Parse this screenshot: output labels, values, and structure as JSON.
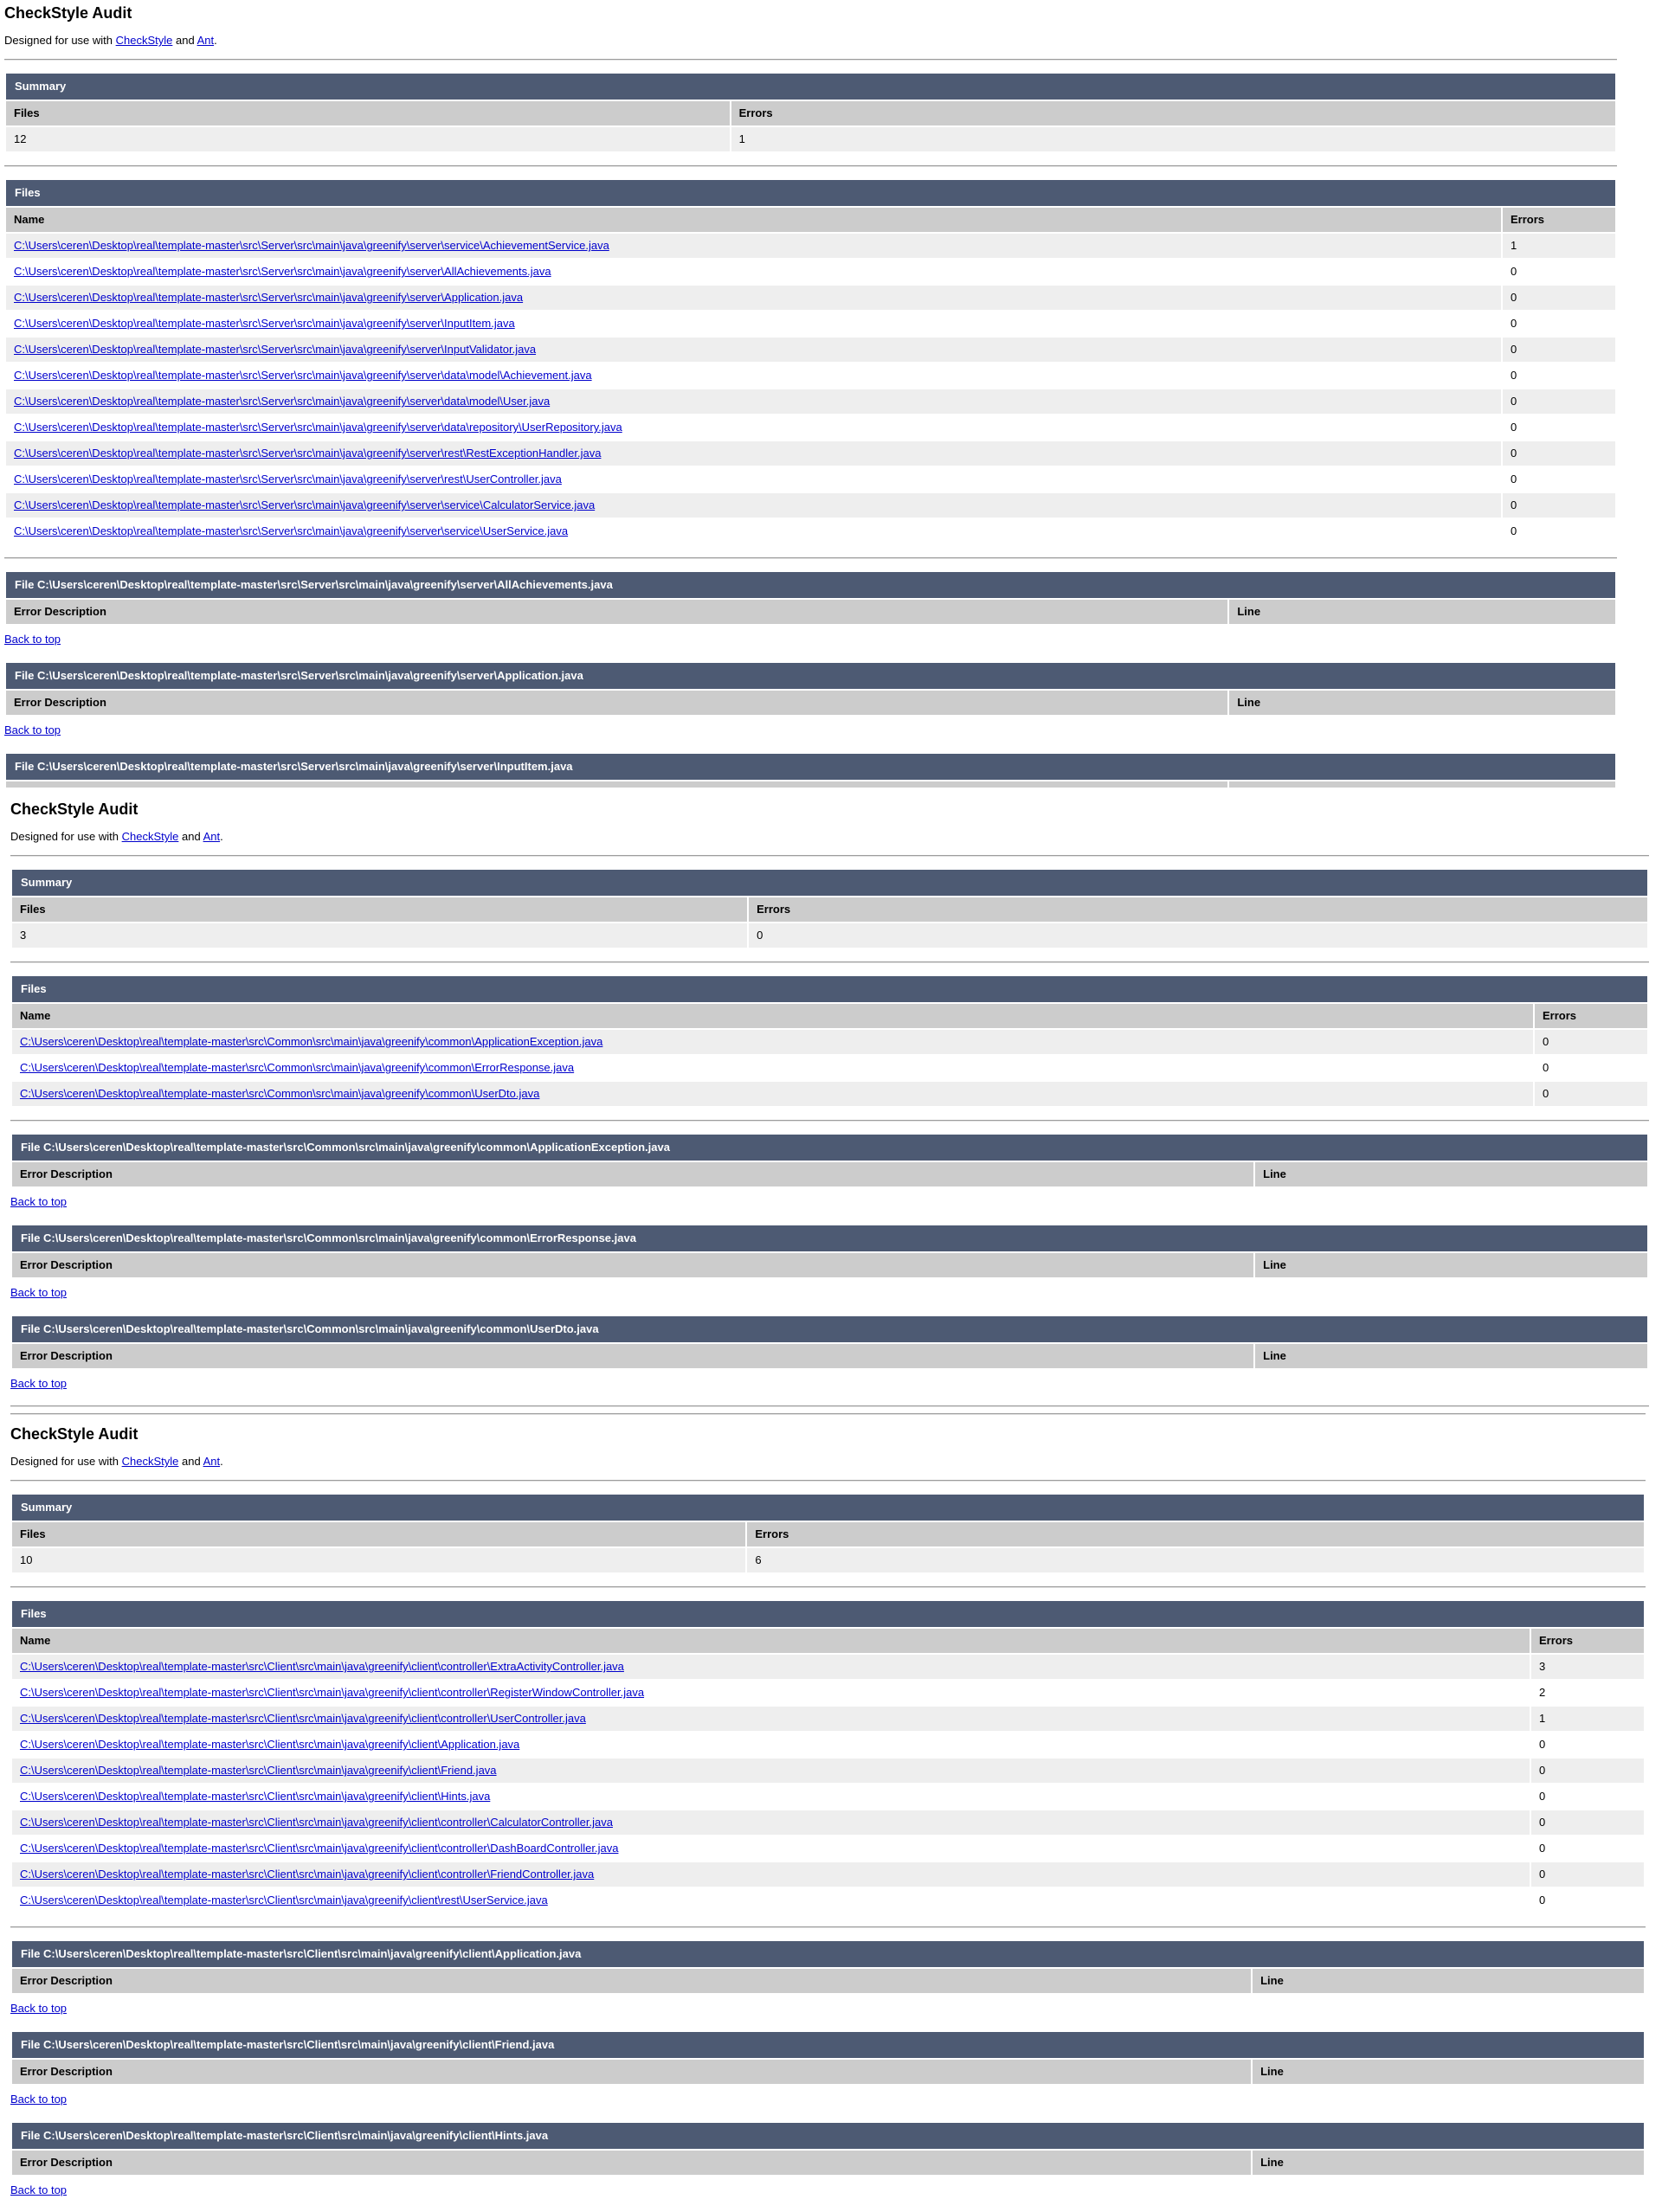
{
  "colors": {
    "header_bar_bg": "#4d5a73",
    "header_bar_text": "#ffffff",
    "column_header_bg": "#cccccc",
    "row_stripe_bg": "#eeeeee",
    "link_color": "#0000cc",
    "rule_color": "#999999"
  },
  "labels": {
    "summary": "Summary",
    "files": "Files",
    "errors": "Errors",
    "name": "Name",
    "error_description": "Error Description",
    "line": "Line",
    "back_to_top": "Back to top",
    "designed_prefix": "Designed for use with ",
    "checkstyle_link": "CheckStyle",
    "and_text": " and ",
    "ant_link": "Ant",
    "period": "."
  },
  "reports": [
    {
      "title": "CheckStyle Audit",
      "summary": {
        "files": "12",
        "errors": "1"
      },
      "files": {
        "rows": [
          {
            "name": "C:\\Users\\ceren\\Desktop\\real\\template-master\\src\\Server\\src\\main\\java\\greenify\\server\\service\\AchievementService.java",
            "errors": "1"
          },
          {
            "name": "C:\\Users\\ceren\\Desktop\\real\\template-master\\src\\Server\\src\\main\\java\\greenify\\server\\AllAchievements.java",
            "errors": "0"
          },
          {
            "name": "C:\\Users\\ceren\\Desktop\\real\\template-master\\src\\Server\\src\\main\\java\\greenify\\server\\Application.java",
            "errors": "0"
          },
          {
            "name": "C:\\Users\\ceren\\Desktop\\real\\template-master\\src\\Server\\src\\main\\java\\greenify\\server\\InputItem.java",
            "errors": "0"
          },
          {
            "name": "C:\\Users\\ceren\\Desktop\\real\\template-master\\src\\Server\\src\\main\\java\\greenify\\server\\InputValidator.java",
            "errors": "0"
          },
          {
            "name": "C:\\Users\\ceren\\Desktop\\real\\template-master\\src\\Server\\src\\main\\java\\greenify\\server\\data\\model\\Achievement.java",
            "errors": "0"
          },
          {
            "name": "C:\\Users\\ceren\\Desktop\\real\\template-master\\src\\Server\\src\\main\\java\\greenify\\server\\data\\model\\User.java",
            "errors": "0"
          },
          {
            "name": "C:\\Users\\ceren\\Desktop\\real\\template-master\\src\\Server\\src\\main\\java\\greenify\\server\\data\\repository\\UserRepository.java",
            "errors": "0"
          },
          {
            "name": "C:\\Users\\ceren\\Desktop\\real\\template-master\\src\\Server\\src\\main\\java\\greenify\\server\\rest\\RestExceptionHandler.java",
            "errors": "0"
          },
          {
            "name": "C:\\Users\\ceren\\Desktop\\real\\template-master\\src\\Server\\src\\main\\java\\greenify\\server\\rest\\UserController.java",
            "errors": "0"
          },
          {
            "name": "C:\\Users\\ceren\\Desktop\\real\\template-master\\src\\Server\\src\\main\\java\\greenify\\server\\service\\CalculatorService.java",
            "errors": "0"
          },
          {
            "name": "C:\\Users\\ceren\\Desktop\\real\\template-master\\src\\Server\\src\\main\\java\\greenify\\server\\service\\UserService.java",
            "errors": "0"
          }
        ]
      },
      "file_sections": [
        {
          "header": "File C:\\Users\\ceren\\Desktop\\real\\template-master\\src\\Server\\src\\main\\java\\greenify\\server\\AllAchievements.java"
        },
        {
          "header": "File C:\\Users\\ceren\\Desktop\\real\\template-master\\src\\Server\\src\\main\\java\\greenify\\server\\Application.java"
        }
      ],
      "truncated_section": {
        "header": "File C:\\Users\\ceren\\Desktop\\real\\template-master\\src\\Server\\src\\main\\java\\greenify\\server\\InputItem.java"
      }
    },
    {
      "title": "CheckStyle Audit",
      "summary": {
        "files": "3",
        "errors": "0"
      },
      "files": {
        "rows": [
          {
            "name": "C:\\Users\\ceren\\Desktop\\real\\template-master\\src\\Common\\src\\main\\java\\greenify\\common\\ApplicationException.java",
            "errors": "0"
          },
          {
            "name": "C:\\Users\\ceren\\Desktop\\real\\template-master\\src\\Common\\src\\main\\java\\greenify\\common\\ErrorResponse.java",
            "errors": "0"
          },
          {
            "name": "C:\\Users\\ceren\\Desktop\\real\\template-master\\src\\Common\\src\\main\\java\\greenify\\common\\UserDto.java",
            "errors": "0"
          }
        ]
      },
      "file_sections": [
        {
          "header": "File C:\\Users\\ceren\\Desktop\\real\\template-master\\src\\Common\\src\\main\\java\\greenify\\common\\ApplicationException.java"
        },
        {
          "header": "File C:\\Users\\ceren\\Desktop\\real\\template-master\\src\\Common\\src\\main\\java\\greenify\\common\\ErrorResponse.java"
        },
        {
          "header": "File C:\\Users\\ceren\\Desktop\\real\\template-master\\src\\Common\\src\\main\\java\\greenify\\common\\UserDto.java"
        }
      ]
    },
    {
      "title": "CheckStyle Audit",
      "summary": {
        "files": "10",
        "errors": "6"
      },
      "files": {
        "rows": [
          {
            "name": "C:\\Users\\ceren\\Desktop\\real\\template-master\\src\\Client\\src\\main\\java\\greenify\\client\\controller\\ExtraActivityController.java",
            "errors": "3"
          },
          {
            "name": "C:\\Users\\ceren\\Desktop\\real\\template-master\\src\\Client\\src\\main\\java\\greenify\\client\\controller\\RegisterWindowController.java",
            "errors": "2"
          },
          {
            "name": "C:\\Users\\ceren\\Desktop\\real\\template-master\\src\\Client\\src\\main\\java\\greenify\\client\\controller\\UserController.java",
            "errors": "1"
          },
          {
            "name": "C:\\Users\\ceren\\Desktop\\real\\template-master\\src\\Client\\src\\main\\java\\greenify\\client\\Application.java",
            "errors": "0"
          },
          {
            "name": "C:\\Users\\ceren\\Desktop\\real\\template-master\\src\\Client\\src\\main\\java\\greenify\\client\\Friend.java",
            "errors": "0"
          },
          {
            "name": "C:\\Users\\ceren\\Desktop\\real\\template-master\\src\\Client\\src\\main\\java\\greenify\\client\\Hints.java",
            "errors": "0"
          },
          {
            "name": "C:\\Users\\ceren\\Desktop\\real\\template-master\\src\\Client\\src\\main\\java\\greenify\\client\\controller\\CalculatorController.java",
            "errors": "0"
          },
          {
            "name": "C:\\Users\\ceren\\Desktop\\real\\template-master\\src\\Client\\src\\main\\java\\greenify\\client\\controller\\DashBoardController.java",
            "errors": "0"
          },
          {
            "name": "C:\\Users\\ceren\\Desktop\\real\\template-master\\src\\Client\\src\\main\\java\\greenify\\client\\controller\\FriendController.java",
            "errors": "0"
          },
          {
            "name": "C:\\Users\\ceren\\Desktop\\real\\template-master\\src\\Client\\src\\main\\java\\greenify\\client\\rest\\UserService.java",
            "errors": "0"
          }
        ]
      },
      "file_sections": [
        {
          "header": "File C:\\Users\\ceren\\Desktop\\real\\template-master\\src\\Client\\src\\main\\java\\greenify\\client\\Application.java"
        },
        {
          "header": "File C:\\Users\\ceren\\Desktop\\real\\template-master\\src\\Client\\src\\main\\java\\greenify\\client\\Friend.java"
        },
        {
          "header": "File C:\\Users\\ceren\\Desktop\\real\\template-master\\src\\Client\\src\\main\\java\\greenify\\client\\Hints.java"
        }
      ]
    }
  ]
}
